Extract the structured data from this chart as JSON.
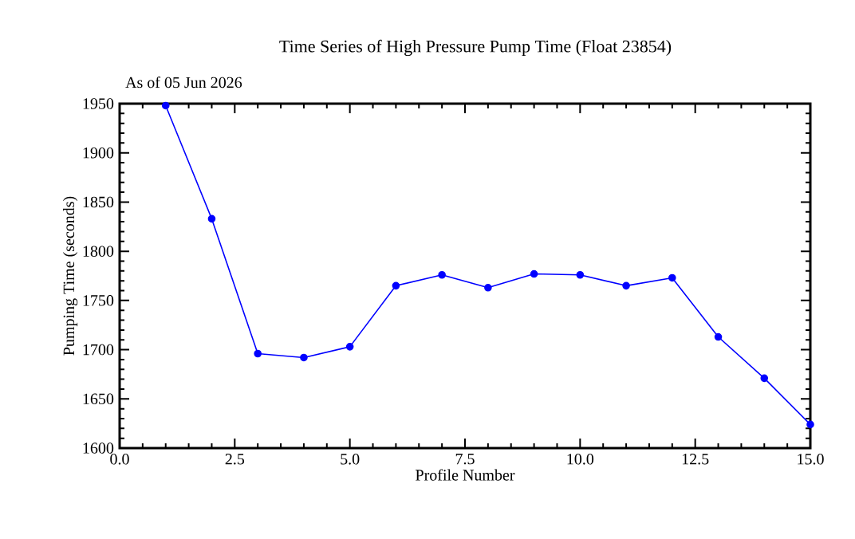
{
  "chart_data": {
    "type": "line",
    "title": "Time Series of High Pressure Pump Time (Float 23854)",
    "subtitle": "As of 05 Jun 2026",
    "xlabel": "Profile Number",
    "ylabel": "Pumping Time (seconds)",
    "x": [
      1,
      2,
      3,
      4,
      5,
      6,
      7,
      8,
      9,
      10,
      11,
      12,
      13,
      14,
      15
    ],
    "series": [
      {
        "color": "#0000ff",
        "values": [
          1948,
          1833,
          1696,
          1692,
          1703,
          1765,
          1776,
          1763,
          1777,
          1776,
          1765,
          1773,
          1713,
          1671,
          1624
        ]
      }
    ],
    "xlim": [
      0,
      15
    ],
    "ylim": [
      1600,
      1950
    ],
    "xticks": [
      {
        "value": 0,
        "label": "0.0"
      },
      {
        "value": 2.5,
        "label": "2.5"
      },
      {
        "value": 5,
        "label": "5.0"
      },
      {
        "value": 7.5,
        "label": "7.5"
      },
      {
        "value": 10,
        "label": "10.0"
      },
      {
        "value": 12.5,
        "label": "12.5"
      },
      {
        "value": 15,
        "label": "15.0"
      }
    ],
    "yticks": [
      1600,
      1650,
      1700,
      1750,
      1800,
      1850,
      1900,
      1950
    ],
    "marker": "circle",
    "line_style": "solid",
    "grid": false
  }
}
